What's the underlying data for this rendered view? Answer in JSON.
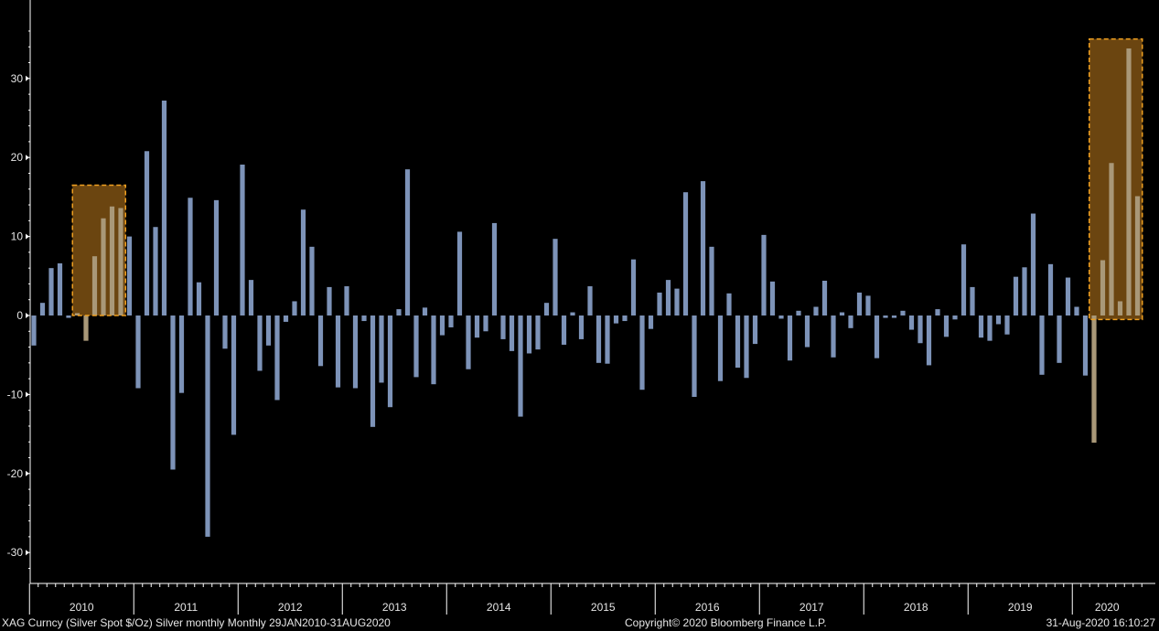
{
  "chart_data": {
    "type": "bar",
    "title": "",
    "xlabel": "",
    "ylabel": "",
    "ylim": [
      -34,
      39
    ],
    "y_ticks": [
      30,
      20,
      10,
      0,
      -10,
      -20,
      -30
    ],
    "y_tick_labels": [
      "30",
      "20",
      "10",
      "0",
      "-10",
      "-20",
      "-30"
    ],
    "year_labels": [
      "2010",
      "2011",
      "2012",
      "2013",
      "2014",
      "2015",
      "2016",
      "2017",
      "2018",
      "2019",
      "2020"
    ],
    "start": "Jan 2010",
    "end": "Aug 2020",
    "bar_color": "#7d93b8",
    "highlight_color": "#6b4510",
    "highlight_border_color": "#f0a020",
    "highlights": [
      {
        "from": "Jun 2010",
        "to": "Nov 2010",
        "ymin": 0,
        "ymax": 16.5
      },
      {
        "from": "Mar 2020",
        "to": "Aug 2020",
        "ymin": -0.5,
        "ymax": 35
      }
    ],
    "series": [
      {
        "values": [
          -3.8,
          1.6,
          6.0,
          6.6,
          -0.3,
          0.3,
          -3.2,
          7.5,
          12.3,
          13.8,
          13.6,
          10.0,
          -9.2,
          20.8,
          11.2,
          27.2,
          -19.5,
          -9.8,
          14.9,
          4.2,
          -28.0,
          14.6,
          -4.2,
          -15.1,
          19.1,
          4.5,
          -7.0,
          -3.8,
          -10.7,
          -0.8,
          1.8,
          13.4,
          8.7,
          -6.4,
          3.6,
          -9.1,
          3.7,
          -9.2,
          -0.7,
          -14.1,
          -8.5,
          -11.6,
          0.8,
          18.5,
          -7.8,
          1.0,
          -8.7,
          -2.5,
          -1.5,
          10.6,
          -6.8,
          -2.8,
          -2.0,
          11.7,
          -3.0,
          -4.5,
          -12.8,
          -4.8,
          -4.3,
          1.6,
          9.7,
          -3.7,
          0.4,
          -3.0,
          3.7,
          -6.0,
          -6.1,
          -1.0,
          -0.7,
          7.1,
          -9.4,
          -1.7,
          2.9,
          4.5,
          3.4,
          15.6,
          -10.3,
          17.0,
          8.7,
          -8.3,
          2.8,
          -6.6,
          -7.9,
          -3.6,
          10.2,
          4.3,
          -0.4,
          -5.7,
          0.6,
          -4.0,
          1.1,
          4.4,
          -5.3,
          0.4,
          -1.6,
          2.9,
          2.5,
          -5.4,
          -0.3,
          -0.3,
          0.6,
          -1.8,
          -3.5,
          -6.3,
          0.8,
          -2.7,
          -0.5,
          9.0,
          3.6,
          -2.8,
          -3.2,
          -1.1,
          -2.4,
          4.9,
          6.1,
          12.9,
          -7.5,
          6.5,
          -6.0,
          4.8,
          1.1,
          -7.6,
          -16.1,
          7.0,
          19.3,
          1.8,
          33.8,
          15.1
        ]
      }
    ]
  },
  "footer": {
    "left": "XAG Curncy (Silver Spot  $/Oz) Silver monthly  Monthly 29JAN2010-31AUG2020",
    "center": "Copyright© 2020 Bloomberg Finance L.P.",
    "right": "31-Aug-2020 16:10:27"
  }
}
